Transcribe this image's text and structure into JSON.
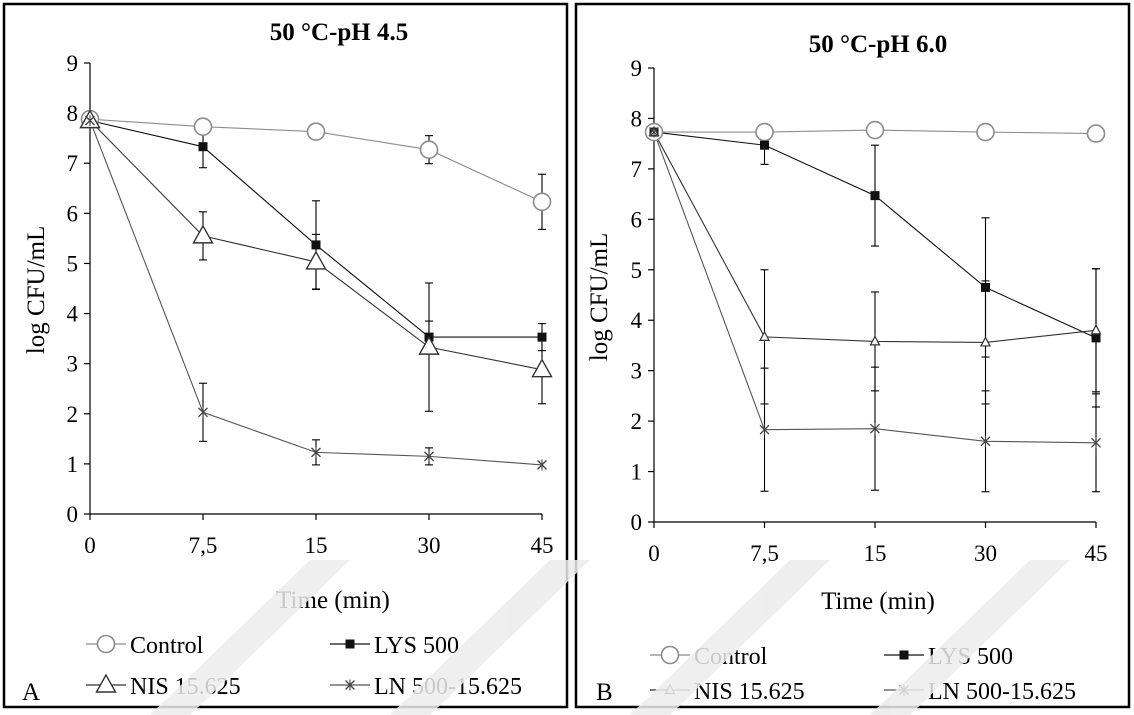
{
  "chart_data": [
    {
      "panel_letter": "A",
      "type": "line",
      "title": "50 °C-pH 4.5",
      "xlabel": "Time (min)",
      "ylabel": "log CFU/mL",
      "x_categories": [
        "0",
        "7,5",
        "15",
        "30",
        "45"
      ],
      "ylim": [
        0,
        9
      ],
      "yticks": [
        "0",
        "1",
        "2",
        "3",
        "4",
        "5",
        "6",
        "7",
        "8",
        "9"
      ],
      "grid": false,
      "legend_position": "bottom",
      "series": [
        {
          "name": "Control",
          "marker": "circle-open",
          "values": [
            7.88,
            7.73,
            7.63,
            7.27,
            6.23
          ],
          "errors": [
            0.08,
            0.12,
            0.12,
            0.28,
            0.55
          ]
        },
        {
          "name": "LYS 500",
          "marker": "square-filled",
          "values": [
            7.85,
            7.33,
            5.37,
            3.53,
            3.53
          ],
          "errors": [
            0.08,
            0.42,
            0.88,
            0.32,
            0.27
          ]
        },
        {
          "name": "NIS 15.625",
          "marker": "triangle-open",
          "values": [
            7.85,
            5.55,
            5.03,
            3.33,
            2.88
          ],
          "errors": [
            0.08,
            0.48,
            0.55,
            1.28,
            0.68
          ]
        },
        {
          "name": "LN 500-15.625",
          "marker": "x",
          "values": [
            7.85,
            2.03,
            1.23,
            1.15,
            0.98
          ],
          "errors": [
            0.08,
            0.58,
            0.25,
            0.17,
            0.0
          ]
        }
      ]
    },
    {
      "panel_letter": "B",
      "type": "line",
      "title": "50 °C-pH 6.0",
      "xlabel": "Time (min)",
      "ylabel": "log CFU/mL",
      "x_categories": [
        "0",
        "7,5",
        "15",
        "30",
        "45"
      ],
      "ylim": [
        0,
        9
      ],
      "yticks": [
        "0",
        "1",
        "2",
        "3",
        "4",
        "5",
        "6",
        "7",
        "8",
        "9"
      ],
      "grid": false,
      "legend_position": "bottom",
      "series": [
        {
          "name": "Control",
          "marker": "circle-open",
          "values": [
            7.73,
            7.73,
            7.77,
            7.73,
            7.7
          ],
          "errors": [
            0.1,
            0.12,
            0.12,
            0.1,
            0.1
          ]
        },
        {
          "name": "LYS 500",
          "marker": "square-filled",
          "values": [
            7.73,
            7.47,
            6.47,
            4.65,
            3.65
          ],
          "errors": [
            0.1,
            0.38,
            1.0,
            1.38,
            1.37
          ]
        },
        {
          "name": "NIS 15.625",
          "marker": "triangle-small",
          "values": [
            7.73,
            3.67,
            3.58,
            3.56,
            3.8
          ],
          "errors": [
            0.1,
            1.33,
            0.98,
            1.22,
            1.22
          ]
        },
        {
          "name": "LN 500-15.625",
          "marker": "x",
          "values": [
            7.73,
            1.83,
            1.85,
            1.6,
            1.57
          ],
          "errors": [
            0.1,
            1.22,
            1.22,
            1.0,
            0.97
          ]
        }
      ]
    }
  ]
}
